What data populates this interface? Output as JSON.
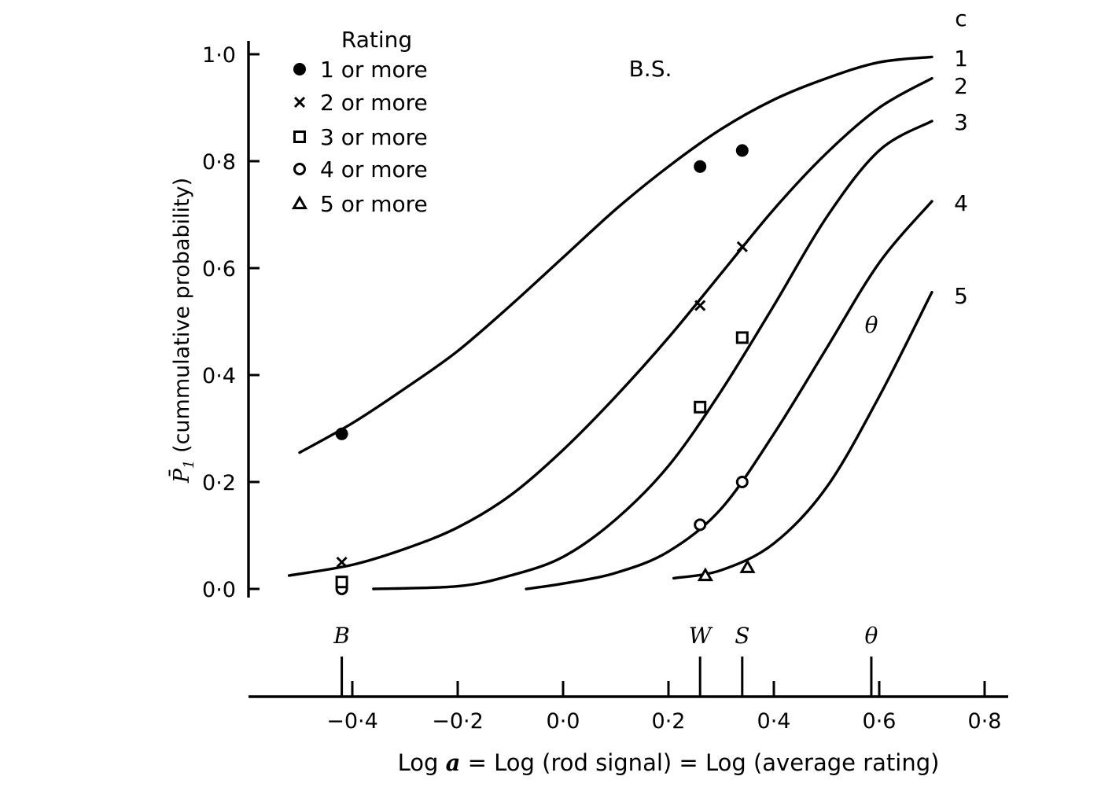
{
  "chart_data": {
    "type": "scatter",
    "panel_letter": "c",
    "subject": "B.S.",
    "ylabel_sym": "P̄",
    "ylabel_sub": "1",
    "ylabel_text": " (cummulative probability)",
    "xlabel_parts": {
      "pre": "Log ",
      "var": "a",
      "post": " = Log (rod signal) = Log (average rating)"
    },
    "ylim": [
      0,
      1.0
    ],
    "xlim": [
      -0.6,
      0.8
    ],
    "y_ticks": [
      0.0,
      0.2,
      0.4,
      0.6,
      0.8,
      1.0
    ],
    "y_tick_labels": [
      "0·0",
      "0·2",
      "0·4",
      "0·6",
      "0·8",
      "1·0"
    ],
    "x_ticks": [
      -0.4,
      -0.2,
      0.0,
      0.2,
      0.4,
      0.6,
      0.8
    ],
    "x_tick_labels": [
      "−0·4",
      "−0·2",
      "0·0",
      "0·2",
      "0·4",
      "0·6",
      "0·8"
    ],
    "legend": {
      "title": "Rating",
      "placement": "top-left",
      "entries": [
        {
          "label": "1 or more",
          "marker": "filled-circle"
        },
        {
          "label": "2 or more",
          "marker": "cross"
        },
        {
          "label": "3 or more",
          "marker": "open-square"
        },
        {
          "label": "4 or more",
          "marker": "open-circle"
        },
        {
          "label": "5 or more",
          "marker": "open-triangle"
        }
      ]
    },
    "series": [
      {
        "name": "1",
        "marker": "filled-circle",
        "points": [
          [
            -0.42,
            0.29
          ],
          [
            0.26,
            0.79
          ],
          [
            0.34,
            0.82
          ]
        ],
        "curve": [
          [
            -0.5,
            0.255
          ],
          [
            -0.4,
            0.31
          ],
          [
            -0.3,
            0.375
          ],
          [
            -0.2,
            0.445
          ],
          [
            -0.1,
            0.53
          ],
          [
            0.0,
            0.62
          ],
          [
            0.1,
            0.71
          ],
          [
            0.2,
            0.79
          ],
          [
            0.3,
            0.86
          ],
          [
            0.4,
            0.915
          ],
          [
            0.5,
            0.955
          ],
          [
            0.6,
            0.985
          ],
          [
            0.7,
            0.995
          ]
        ]
      },
      {
        "name": "2",
        "marker": "cross",
        "points": [
          [
            -0.42,
            0.05
          ],
          [
            0.26,
            0.53
          ],
          [
            0.34,
            0.64
          ]
        ],
        "curve": [
          [
            -0.52,
            0.025
          ],
          [
            -0.4,
            0.045
          ],
          [
            -0.3,
            0.075
          ],
          [
            -0.2,
            0.115
          ],
          [
            -0.1,
            0.175
          ],
          [
            0.0,
            0.26
          ],
          [
            0.1,
            0.36
          ],
          [
            0.2,
            0.47
          ],
          [
            0.3,
            0.59
          ],
          [
            0.4,
            0.71
          ],
          [
            0.5,
            0.815
          ],
          [
            0.6,
            0.9
          ],
          [
            0.7,
            0.955
          ]
        ]
      },
      {
        "name": "3",
        "marker": "open-square",
        "points": [
          [
            -0.42,
            0.01
          ],
          [
            0.26,
            0.34
          ],
          [
            0.34,
            0.47
          ]
        ],
        "curve": [
          [
            -0.36,
            0.0
          ],
          [
            -0.2,
            0.005
          ],
          [
            -0.1,
            0.025
          ],
          [
            0.0,
            0.06
          ],
          [
            0.1,
            0.13
          ],
          [
            0.2,
            0.23
          ],
          [
            0.3,
            0.37
          ],
          [
            0.4,
            0.53
          ],
          [
            0.5,
            0.695
          ],
          [
            0.6,
            0.82
          ],
          [
            0.7,
            0.875
          ]
        ]
      },
      {
        "name": "4",
        "marker": "open-circle",
        "points": [
          [
            -0.42,
            0.0
          ],
          [
            0.26,
            0.12
          ],
          [
            0.34,
            0.2
          ]
        ],
        "curve": [
          [
            -0.07,
            0.0
          ],
          [
            0.0,
            0.01
          ],
          [
            0.1,
            0.03
          ],
          [
            0.2,
            0.07
          ],
          [
            0.3,
            0.15
          ],
          [
            0.4,
            0.29
          ],
          [
            0.5,
            0.45
          ],
          [
            0.6,
            0.61
          ],
          [
            0.7,
            0.725
          ]
        ]
      },
      {
        "name": "5",
        "marker": "open-triangle",
        "points": [
          [
            0.27,
            0.025
          ],
          [
            0.35,
            0.04
          ]
        ],
        "curve": [
          [
            0.21,
            0.02
          ],
          [
            0.3,
            0.035
          ],
          [
            0.4,
            0.085
          ],
          [
            0.5,
            0.19
          ],
          [
            0.6,
            0.36
          ],
          [
            0.7,
            0.555
          ]
        ]
      }
    ],
    "curve_labels": [
      "1",
      "2",
      "3",
      "4",
      "5"
    ],
    "theta_label": "θ",
    "lower_axis": {
      "markers": [
        {
          "label": "B",
          "x": -0.42
        },
        {
          "label": "W",
          "x": 0.26
        },
        {
          "label": "S",
          "x": 0.34
        },
        {
          "label": "θ",
          "x": 0.585
        }
      ]
    },
    "grid": false
  }
}
